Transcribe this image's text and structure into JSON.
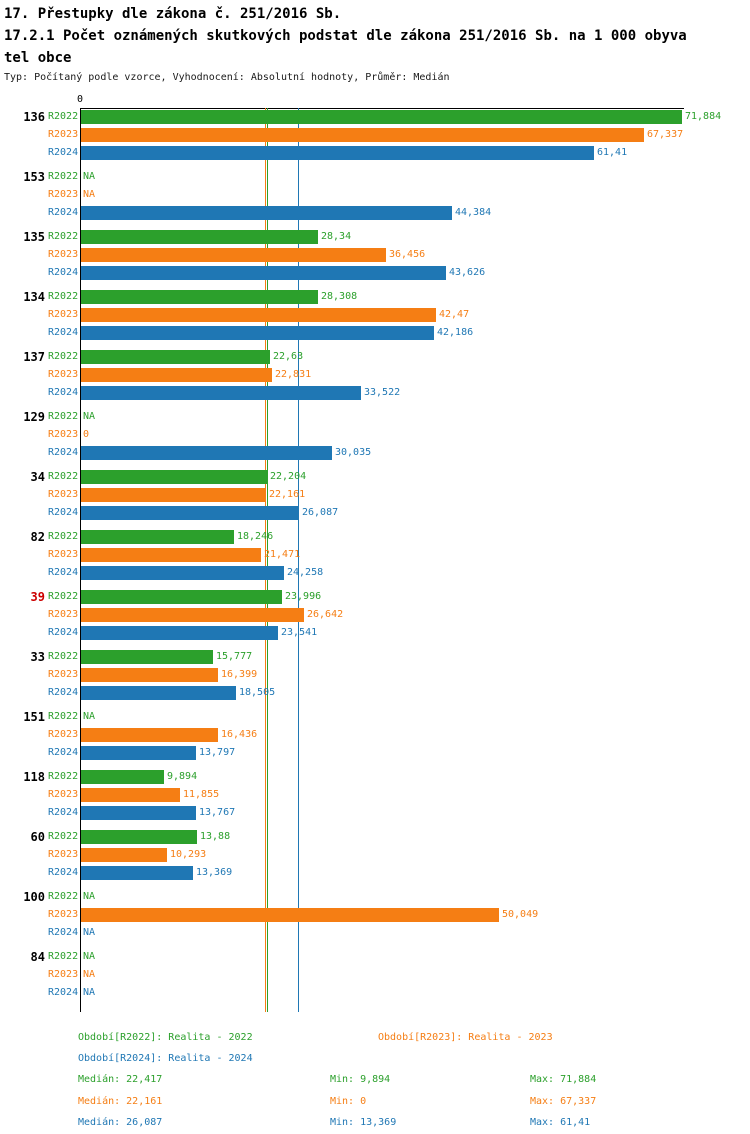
{
  "header": {
    "title_line1": "17. Přestupky dle zákona č. 251/2016 Sb.",
    "title_line2": "17.2.1 Počet oznámených skutkových podstat dle zákona 251/2016 Sb. na 1 000 obyva",
    "title_line3": "tel obce",
    "subtitle": "Typ: Počítaný podle vzorce, Vyhodnocení: Absolutní hodnoty, Průměr: Medián"
  },
  "colors": {
    "r2022": "#2ca02c",
    "r2023": "#f57e14",
    "r2024": "#1f77b4",
    "highlight": "#cc0000",
    "axis": "#000000"
  },
  "chart_data": {
    "type": "bar",
    "orientation": "horizontal",
    "title": "17.2.1 Počet oznámených skutkových podstat dle zákona 251/2016 Sb. na 1 000 obyvatel obce",
    "zero_label": "0",
    "x_range": [
      0,
      72
    ],
    "grid": false,
    "legend_position": "bottom",
    "categories": [
      "136",
      "153",
      "135",
      "134",
      "137",
      "129",
      "34",
      "82",
      "39",
      "33",
      "151",
      "118",
      "60",
      "100",
      "84"
    ],
    "highlighted_category": "39",
    "series": [
      {
        "name": "R2022",
        "color_key": "r2022",
        "values": [
          71.884,
          null,
          28.34,
          28.308,
          22.63,
          null,
          22.204,
          18.246,
          23.996,
          15.777,
          null,
          9.894,
          13.88,
          null,
          null
        ],
        "labels": [
          "71,884",
          "NA",
          "28,34",
          "28,308",
          "22,63",
          "NA",
          "22,204",
          "18,246",
          "23,996",
          "15,777",
          "NA",
          "9,894",
          "13,88",
          "NA",
          "NA"
        ]
      },
      {
        "name": "R2023",
        "color_key": "r2023",
        "values": [
          67.337,
          null,
          36.456,
          42.47,
          22.831,
          0,
          22.161,
          21.471,
          26.642,
          16.399,
          16.436,
          11.855,
          10.293,
          50.049,
          null
        ],
        "labels": [
          "67,337",
          "NA",
          "36,456",
          "42,47",
          "22,831",
          "0",
          "22,161",
          "21,471",
          "26,642",
          "16,399",
          "16,436",
          "11,855",
          "10,293",
          "50,049",
          "NA"
        ]
      },
      {
        "name": "R2024",
        "color_key": "r2024",
        "values": [
          61.41,
          44.384,
          43.626,
          42.186,
          33.522,
          30.035,
          26.087,
          24.258,
          23.541,
          18.505,
          13.797,
          13.767,
          13.369,
          null,
          null
        ],
        "labels": [
          "61,41",
          "44,384",
          "43,626",
          "42,186",
          "33,522",
          "30,035",
          "26,087",
          "24,258",
          "23,541",
          "18,505",
          "13,797",
          "13,767",
          "13,369",
          "NA",
          "NA"
        ]
      }
    ],
    "median_lines": [
      {
        "series": "R2022",
        "value": 22.417,
        "color_key": "r2022"
      },
      {
        "series": "R2023",
        "value": 22.161,
        "color_key": "r2023"
      },
      {
        "series": "R2024",
        "value": 26.087,
        "color_key": "r2024"
      }
    ]
  },
  "legend": {
    "r2022": "Období[R2022]: Realita - 2022",
    "r2023": "Období[R2023]: Realita - 2023",
    "r2024": "Období[R2024]: Realita - 2024"
  },
  "stats": {
    "r2022": {
      "median": "Medián: 22,417",
      "min": "Min: 9,894",
      "max": "Max: 71,884"
    },
    "r2023": {
      "median": "Medián: 22,161",
      "min": "Min: 0",
      "max": "Max: 67,337"
    },
    "r2024": {
      "median": "Medián: 26,087",
      "min": "Min: 13,369",
      "max": "Max: 61,41"
    }
  }
}
